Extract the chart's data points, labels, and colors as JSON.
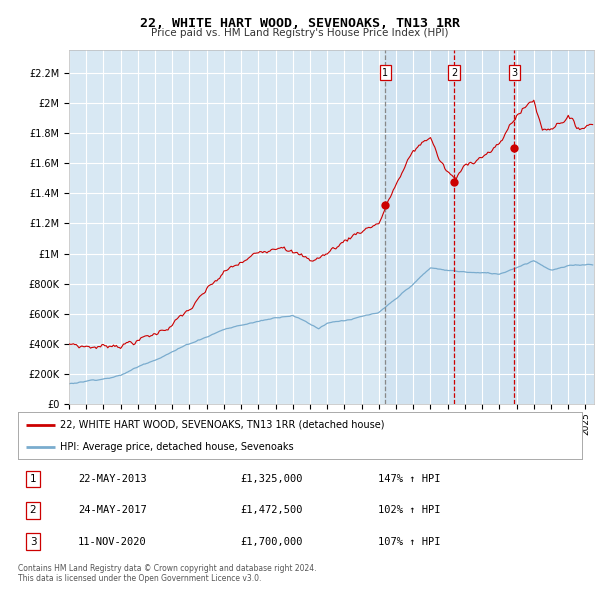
{
  "title": "22, WHITE HART WOOD, SEVENOAKS, TN13 1RR",
  "subtitle": "Price paid vs. HM Land Registry's House Price Index (HPI)",
  "ylabel_ticks": [
    "£0",
    "£200K",
    "£400K",
    "£600K",
    "£800K",
    "£1M",
    "£1.2M",
    "£1.4M",
    "£1.6M",
    "£1.8M",
    "£2M",
    "£2.2M"
  ],
  "ytick_vals": [
    0,
    200000,
    400000,
    600000,
    800000,
    1000000,
    1200000,
    1400000,
    1600000,
    1800000,
    2000000,
    2200000
  ],
  "ylim": [
    0,
    2350000
  ],
  "xlim_start": 1995.0,
  "xlim_end": 2025.5,
  "background_color": "#d8e8f3",
  "grid_color": "#ffffff",
  "red_line_color": "#cc0000",
  "blue_line_color": "#7aacce",
  "shade_color": "#ddeeff",
  "sale_dates": [
    2013.38,
    2017.38,
    2020.87
  ],
  "sale_prices": [
    1325000,
    1472500,
    1700000
  ],
  "sale_labels": [
    "1",
    "2",
    "3"
  ],
  "sale_vline_styles": [
    "dashed_gray",
    "dashed_red",
    "dashed_red"
  ],
  "legend_entries": [
    "22, WHITE HART WOOD, SEVENOAKS, TN13 1RR (detached house)",
    "HPI: Average price, detached house, Sevenoaks"
  ],
  "table_rows": [
    [
      "1",
      "22-MAY-2013",
      "£1,325,000",
      "147% ↑ HPI"
    ],
    [
      "2",
      "24-MAY-2017",
      "£1,472,500",
      "102% ↑ HPI"
    ],
    [
      "3",
      "11-NOV-2020",
      "£1,700,000",
      "107% ↑ HPI"
    ]
  ],
  "footer": "Contains HM Land Registry data © Crown copyright and database right 2024.\nThis data is licensed under the Open Government Licence v3.0."
}
